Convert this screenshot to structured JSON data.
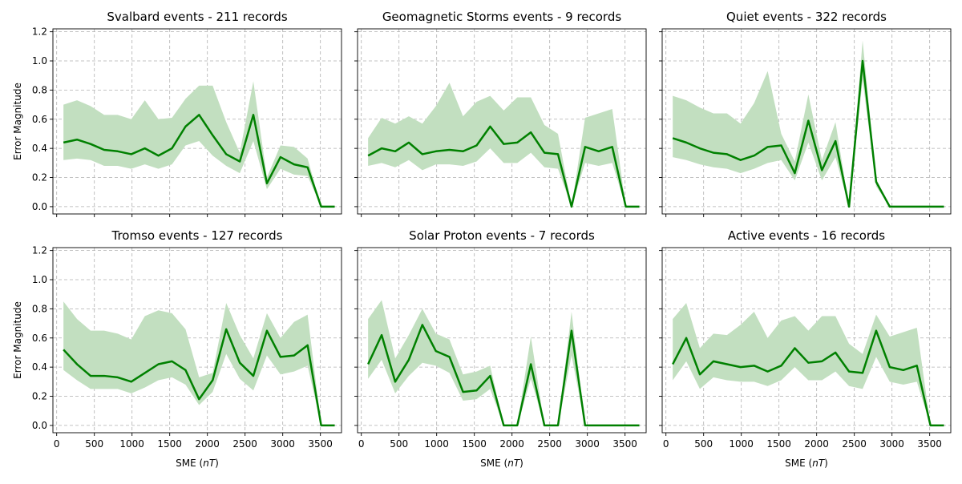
{
  "figure": {
    "xlabel": "SME",
    "xlabel_unit": "nT",
    "ylabel": "Error Magnitude"
  },
  "chart_data": [
    {
      "type": "line",
      "title": "Svalbard events - 211 records",
      "xlabel": "",
      "ylabel": "Error Magnitude",
      "xlim": [
        -50,
        3780
      ],
      "ylim": [
        -0.05,
        1.22
      ],
      "xticks": [
        0,
        500,
        1000,
        1500,
        2000,
        2500,
        3000,
        3500
      ],
      "yticks": [
        0.0,
        0.2,
        0.4,
        0.6,
        0.8,
        1.0,
        1.2
      ],
      "grid": true,
      "line_color": "#008000",
      "band_color": "#c2dfc0",
      "x": [
        90,
        270,
        450,
        630,
        810,
        990,
        1170,
        1350,
        1530,
        1710,
        1890,
        2070,
        2250,
        2430,
        2610,
        2790,
        2970,
        3150,
        3330,
        3510,
        3690
      ],
      "mean": [
        0.44,
        0.46,
        0.43,
        0.39,
        0.38,
        0.36,
        0.4,
        0.35,
        0.4,
        0.55,
        0.63,
        0.49,
        0.36,
        0.31,
        0.63,
        0.16,
        0.34,
        0.29,
        0.27,
        0.0,
        0.0
      ],
      "upper": [
        0.7,
        0.73,
        0.69,
        0.63,
        0.63,
        0.6,
        0.73,
        0.6,
        0.61,
        0.74,
        0.83,
        0.83,
        0.58,
        0.37,
        0.86,
        0.2,
        0.42,
        0.41,
        0.33,
        0.0,
        0.0
      ],
      "lower": [
        0.32,
        0.33,
        0.32,
        0.28,
        0.28,
        0.26,
        0.29,
        0.26,
        0.29,
        0.42,
        0.45,
        0.35,
        0.28,
        0.23,
        0.45,
        0.12,
        0.26,
        0.22,
        0.21,
        0.0,
        0.0
      ]
    },
    {
      "type": "line",
      "title": "Geomagnetic Storms events - 9 records",
      "xlabel": "",
      "ylabel": "",
      "xlim": [
        -50,
        3780
      ],
      "ylim": [
        -0.05,
        1.22
      ],
      "xticks": [
        0,
        500,
        1000,
        1500,
        2000,
        2500,
        3000,
        3500
      ],
      "yticks": [
        0.0,
        0.2,
        0.4,
        0.6,
        0.8,
        1.0,
        1.2
      ],
      "grid": true,
      "line_color": "#008000",
      "band_color": "#c2dfc0",
      "x": [
        90,
        270,
        450,
        630,
        810,
        990,
        1170,
        1350,
        1530,
        1710,
        1890,
        2070,
        2250,
        2430,
        2610,
        2790,
        2970,
        3150,
        3330,
        3510,
        3690
      ],
      "mean": [
        0.35,
        0.4,
        0.38,
        0.44,
        0.36,
        0.38,
        0.39,
        0.38,
        0.42,
        0.55,
        0.43,
        0.44,
        0.51,
        0.37,
        0.36,
        0.0,
        0.41,
        0.38,
        0.41,
        0.0,
        0.0
      ],
      "upper": [
        0.47,
        0.61,
        0.57,
        0.62,
        0.57,
        0.69,
        0.85,
        0.62,
        0.72,
        0.76,
        0.66,
        0.75,
        0.75,
        0.56,
        0.5,
        0.0,
        0.61,
        0.64,
        0.67,
        0.0,
        0.0
      ],
      "lower": [
        0.28,
        0.3,
        0.27,
        0.32,
        0.25,
        0.29,
        0.29,
        0.28,
        0.31,
        0.4,
        0.3,
        0.3,
        0.37,
        0.27,
        0.26,
        0.0,
        0.3,
        0.28,
        0.3,
        0.0,
        0.0
      ]
    },
    {
      "type": "line",
      "title": "Quiet events - 322 records",
      "xlabel": "",
      "ylabel": "",
      "xlim": [
        -50,
        3780
      ],
      "ylim": [
        -0.05,
        1.22
      ],
      "xticks": [
        0,
        500,
        1000,
        1500,
        2000,
        2500,
        3000,
        3500
      ],
      "yticks": [
        0.0,
        0.2,
        0.4,
        0.6,
        0.8,
        1.0,
        1.2
      ],
      "grid": true,
      "line_color": "#008000",
      "band_color": "#c2dfc0",
      "x": [
        90,
        270,
        450,
        630,
        810,
        990,
        1170,
        1350,
        1530,
        1710,
        1890,
        2070,
        2250,
        2430,
        2610,
        2790,
        2970,
        3150,
        3330,
        3510,
        3690
      ],
      "mean": [
        0.47,
        0.44,
        0.4,
        0.37,
        0.36,
        0.32,
        0.35,
        0.41,
        0.42,
        0.23,
        0.59,
        0.25,
        0.45,
        0.0,
        1.0,
        0.17,
        0.0,
        0.0,
        0.0,
        0.0,
        0.0
      ],
      "upper": [
        0.76,
        0.73,
        0.68,
        0.64,
        0.64,
        0.57,
        0.71,
        0.93,
        0.5,
        0.31,
        0.77,
        0.32,
        0.58,
        0.0,
        1.14,
        0.19,
        0.0,
        0.0,
        0.0,
        0.0,
        0.0
      ],
      "lower": [
        0.34,
        0.32,
        0.29,
        0.27,
        0.26,
        0.23,
        0.26,
        0.3,
        0.32,
        0.18,
        0.44,
        0.18,
        0.34,
        0.0,
        0.87,
        0.14,
        0.0,
        0.0,
        0.0,
        0.0,
        0.0
      ]
    },
    {
      "type": "line",
      "title": "Tromso events - 127 records",
      "xlabel": "SME",
      "ylabel": "Error Magnitude",
      "xlim": [
        -50,
        3780
      ],
      "ylim": [
        -0.05,
        1.22
      ],
      "xticks": [
        0,
        500,
        1000,
        1500,
        2000,
        2500,
        3000,
        3500
      ],
      "yticks": [
        0.0,
        0.2,
        0.4,
        0.6,
        0.8,
        1.0,
        1.2
      ],
      "grid": true,
      "line_color": "#008000",
      "band_color": "#c2dfc0",
      "x": [
        90,
        270,
        450,
        630,
        810,
        990,
        1170,
        1350,
        1530,
        1710,
        1890,
        2070,
        2250,
        2430,
        2610,
        2790,
        2970,
        3150,
        3330,
        3510,
        3690
      ],
      "mean": [
        0.52,
        0.42,
        0.34,
        0.34,
        0.33,
        0.3,
        0.36,
        0.42,
        0.44,
        0.38,
        0.18,
        0.31,
        0.66,
        0.43,
        0.34,
        0.65,
        0.47,
        0.48,
        0.55,
        0.0,
        0.0
      ],
      "upper": [
        0.85,
        0.73,
        0.65,
        0.65,
        0.63,
        0.59,
        0.75,
        0.79,
        0.77,
        0.66,
        0.33,
        0.36,
        0.84,
        0.62,
        0.46,
        0.77,
        0.6,
        0.71,
        0.76,
        0.0,
        0.0
      ],
      "lower": [
        0.38,
        0.31,
        0.25,
        0.25,
        0.25,
        0.22,
        0.26,
        0.31,
        0.33,
        0.28,
        0.14,
        0.23,
        0.49,
        0.32,
        0.24,
        0.48,
        0.35,
        0.37,
        0.41,
        0.0,
        0.0
      ]
    },
    {
      "type": "line",
      "title": "Solar Proton events - 7 records",
      "xlabel": "SME",
      "ylabel": "",
      "xlim": [
        -50,
        3780
      ],
      "ylim": [
        -0.05,
        1.22
      ],
      "xticks": [
        0,
        500,
        1000,
        1500,
        2000,
        2500,
        3000,
        3500
      ],
      "yticks": [
        0.0,
        0.2,
        0.4,
        0.6,
        0.8,
        1.0,
        1.2
      ],
      "grid": true,
      "line_color": "#008000",
      "band_color": "#c2dfc0",
      "x": [
        90,
        270,
        450,
        630,
        810,
        990,
        1170,
        1350,
        1530,
        1710,
        1890,
        2070,
        2250,
        2430,
        2610,
        2790,
        2970,
        3150,
        3330,
        3510,
        3690
      ],
      "mean": [
        0.42,
        0.62,
        0.3,
        0.45,
        0.69,
        0.51,
        0.47,
        0.23,
        0.24,
        0.34,
        0.0,
        0.0,
        0.42,
        0.0,
        0.0,
        0.65,
        0.0,
        0.0,
        0.0,
        0.0,
        0.0
      ],
      "upper": [
        0.73,
        0.86,
        0.46,
        0.62,
        0.8,
        0.63,
        0.59,
        0.35,
        0.37,
        0.41,
        0.0,
        0.0,
        0.61,
        0.0,
        0.0,
        0.78,
        0.0,
        0.0,
        0.0,
        0.0,
        0.0
      ],
      "lower": [
        0.32,
        0.45,
        0.22,
        0.34,
        0.43,
        0.41,
        0.36,
        0.17,
        0.18,
        0.25,
        0.0,
        0.0,
        0.32,
        0.0,
        0.0,
        0.48,
        0.0,
        0.0,
        0.0,
        0.0,
        0.0
      ]
    },
    {
      "type": "line",
      "title": "Active events - 16 records",
      "xlabel": "SME",
      "ylabel": "",
      "xlim": [
        -50,
        3780
      ],
      "ylim": [
        -0.05,
        1.22
      ],
      "xticks": [
        0,
        500,
        1000,
        1500,
        2000,
        2500,
        3000,
        3500
      ],
      "yticks": [
        0.0,
        0.2,
        0.4,
        0.6,
        0.8,
        1.0,
        1.2
      ],
      "grid": true,
      "line_color": "#008000",
      "band_color": "#c2dfc0",
      "x": [
        90,
        270,
        450,
        630,
        810,
        990,
        1170,
        1350,
        1530,
        1710,
        1890,
        2070,
        2250,
        2430,
        2610,
        2790,
        2970,
        3150,
        3330,
        3510,
        3690
      ],
      "mean": [
        0.42,
        0.6,
        0.35,
        0.44,
        0.42,
        0.4,
        0.41,
        0.37,
        0.41,
        0.53,
        0.43,
        0.44,
        0.5,
        0.37,
        0.36,
        0.65,
        0.4,
        0.38,
        0.41,
        0.0,
        0.0
      ],
      "upper": [
        0.73,
        0.84,
        0.53,
        0.63,
        0.62,
        0.69,
        0.78,
        0.6,
        0.72,
        0.75,
        0.65,
        0.75,
        0.75,
        0.56,
        0.49,
        0.76,
        0.61,
        0.64,
        0.67,
        0.0,
        0.0
      ],
      "lower": [
        0.31,
        0.44,
        0.25,
        0.33,
        0.31,
        0.3,
        0.3,
        0.27,
        0.31,
        0.4,
        0.31,
        0.31,
        0.37,
        0.27,
        0.25,
        0.47,
        0.3,
        0.28,
        0.3,
        0.0,
        0.0
      ]
    }
  ]
}
